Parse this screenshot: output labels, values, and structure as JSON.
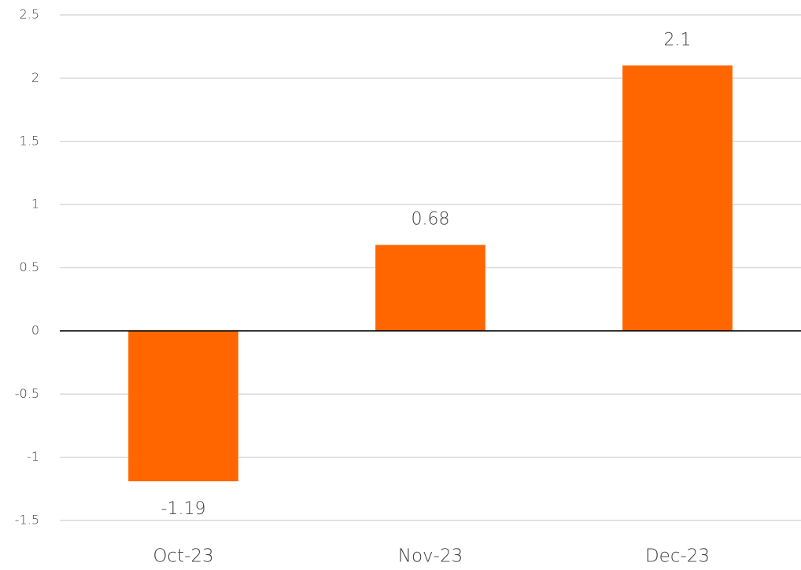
{
  "chart_data": {
    "type": "bar",
    "categories": [
      "Oct-23",
      "Nov-23",
      "Dec-23"
    ],
    "values": [
      -1.19,
      0.68,
      2.1
    ],
    "color": "#ff6600",
    "ylim": [
      -1.5,
      2.5
    ],
    "yticks": [
      2.5,
      2,
      1.5,
      1,
      0.5,
      0,
      -0.5,
      -1,
      -1.5
    ],
    "grid": true
  }
}
